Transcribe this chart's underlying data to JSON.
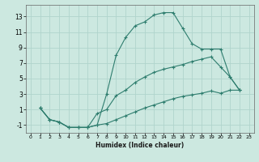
{
  "title": "",
  "xlabel": "Humidex (Indice chaleur)",
  "bg_color": "#cce8e0",
  "grid_color": "#b0d4cc",
  "line_color": "#2e7d6e",
  "xlim": [
    -0.5,
    23.5
  ],
  "ylim": [
    -2.0,
    14.5
  ],
  "xticks": [
    0,
    1,
    2,
    3,
    4,
    5,
    6,
    7,
    8,
    9,
    10,
    11,
    12,
    13,
    14,
    15,
    16,
    17,
    18,
    19,
    20,
    21,
    22,
    23
  ],
  "yticks": [
    -1,
    1,
    3,
    5,
    7,
    9,
    11,
    13
  ],
  "line1_x": [
    1,
    2,
    3,
    4,
    5,
    6,
    7,
    8,
    9,
    10,
    11,
    12,
    13,
    14,
    15,
    16,
    17,
    18,
    19,
    20,
    21,
    22
  ],
  "line1_y": [
    1.2,
    -0.3,
    -0.6,
    -1.3,
    -1.3,
    -1.3,
    -1.0,
    3.0,
    8.0,
    10.3,
    11.8,
    12.3,
    13.2,
    13.5,
    13.5,
    11.5,
    9.5,
    8.8,
    8.8,
    8.8,
    5.2,
    3.5
  ],
  "line2_x": [
    1,
    2,
    3,
    4,
    5,
    6,
    7,
    8,
    9,
    10,
    11,
    12,
    13,
    14,
    15,
    16,
    17,
    18,
    19,
    20,
    21,
    22
  ],
  "line2_y": [
    1.2,
    -0.3,
    -0.6,
    -1.3,
    -1.3,
    -1.3,
    0.5,
    1.0,
    2.8,
    3.5,
    4.5,
    5.2,
    5.8,
    6.2,
    6.5,
    6.8,
    7.2,
    7.5,
    7.8,
    6.5,
    5.2,
    3.5
  ],
  "line3_x": [
    1,
    2,
    3,
    4,
    5,
    6,
    7,
    8,
    9,
    10,
    11,
    12,
    13,
    14,
    15,
    16,
    17,
    18,
    19,
    20,
    21,
    22
  ],
  "line3_y": [
    1.2,
    -0.3,
    -0.6,
    -1.3,
    -1.3,
    -1.3,
    -1.0,
    -0.8,
    -0.3,
    0.2,
    0.7,
    1.2,
    1.6,
    2.0,
    2.4,
    2.7,
    2.9,
    3.1,
    3.4,
    3.1,
    3.5,
    3.5
  ]
}
